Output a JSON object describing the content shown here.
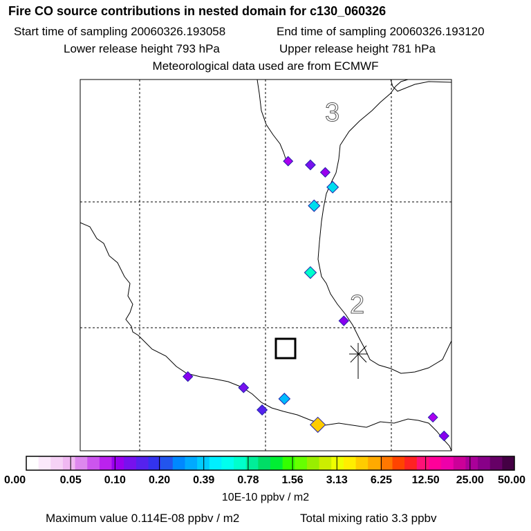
{
  "header": {
    "title": "Fire CO source contributions in nested domain for c130_060326",
    "start_time": "Start time of sampling 20060326.193058",
    "end_time": "End time of sampling 20060326.193120",
    "lower_release": "Lower release height  793 hPa",
    "upper_release": "Upper release height  781 hPa",
    "met_data": "Meteorological data used are from ECMWF"
  },
  "footer": {
    "units": "10E-10 ppbv / m2",
    "max_value": "Maximum value  0.114E-08 ppbv / m2",
    "total_mixing": "Total mixing ratio        3.3 ppbv"
  },
  "chart_data": {
    "type": "heatmap",
    "title": "Fire CO source contributions in nested domain for c130_060326",
    "colorbar": {
      "label": "10E-10 ppbv / m2",
      "tick_labels": [
        "0.00",
        "0.05",
        "0.10",
        "0.20",
        "0.39",
        "0.78",
        "1.56",
        "3.13",
        "6.25",
        "12.50",
        "25.00",
        "50.00"
      ],
      "colors": [
        "#ffffff",
        "#fbe9fb",
        "#f6d2f6",
        "#f0b8f2",
        "#dd88ee",
        "#cc55ee",
        "#bb22ee",
        "#9900ee",
        "#7711ee",
        "#5522ee",
        "#3333ee",
        "#2255ee",
        "#0088ff",
        "#00aaff",
        "#00ccff",
        "#00eeff",
        "#00ffee",
        "#00ffcc",
        "#00ee99",
        "#00dd66",
        "#00ee33",
        "#33ff00",
        "#66ff00",
        "#99ee00",
        "#ccee00",
        "#eeff00",
        "#ffee00",
        "#ffcc00",
        "#ffaa00",
        "#ff7700",
        "#ff4400",
        "#ff2222",
        "#ff1177",
        "#ff0099",
        "#ee00aa",
        "#cc0099",
        "#aa0099",
        "#880088",
        "#660066",
        "#440044"
      ]
    },
    "contour_labels": [
      "3",
      "2"
    ],
    "grid": true,
    "hotspots": [
      {
        "lon": 0.62,
        "lat": 0.77,
        "value": 0.15,
        "color": "#7711ee"
      },
      {
        "lon": 0.68,
        "lat": 0.71,
        "value": 0.5,
        "color": "#00ddee"
      },
      {
        "lon": 0.63,
        "lat": 0.66,
        "value": 0.5,
        "color": "#00ddee"
      },
      {
        "lon": 0.56,
        "lat": 0.78,
        "value": 0.08,
        "color": "#aa00ee"
      },
      {
        "lon": 0.66,
        "lat": 0.75,
        "value": 0.1,
        "color": "#9900ee"
      },
      {
        "lon": 0.62,
        "lat": 0.48,
        "value": 0.6,
        "color": "#00ffcc"
      },
      {
        "lon": 0.71,
        "lat": 0.35,
        "value": 0.12,
        "color": "#8800ee"
      },
      {
        "lon": 0.64,
        "lat": 0.07,
        "value": 4.5,
        "color": "#ffcc00"
      },
      {
        "lon": 0.55,
        "lat": 0.14,
        "value": 0.4,
        "color": "#00bbff"
      },
      {
        "lon": 0.49,
        "lat": 0.11,
        "value": 0.18,
        "color": "#5522ee"
      },
      {
        "lon": 0.44,
        "lat": 0.17,
        "value": 0.15,
        "color": "#7711ee"
      },
      {
        "lon": 0.29,
        "lat": 0.2,
        "value": 0.12,
        "color": "#8800ee"
      },
      {
        "lon": 0.95,
        "lat": 0.09,
        "value": 0.08,
        "color": "#aa00ee"
      },
      {
        "lon": 0.98,
        "lat": 0.04,
        "value": 0.12,
        "color": "#8800ee"
      }
    ]
  }
}
